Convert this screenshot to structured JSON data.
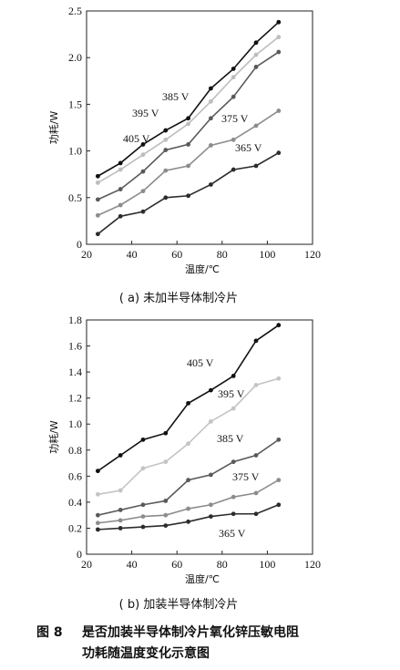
{
  "chart_data": [
    {
      "type": "line",
      "subtitle": "( a) 未加半导体制冷片",
      "xlabel": "温度/℃",
      "ylabel": "功耗/W",
      "xlim": [
        20,
        120
      ],
      "ylim": [
        0,
        2.5
      ],
      "xticks": [
        20,
        40,
        60,
        80,
        100,
        120
      ],
      "yticks": [
        0,
        0.5,
        1.0,
        1.5,
        2.0,
        2.5
      ],
      "ytick_labels": [
        "0",
        "0.5",
        "1.0",
        "1.5",
        "2.0",
        "2.5"
      ],
      "x": [
        25,
        35,
        45,
        55,
        65,
        75,
        85,
        95,
        105
      ],
      "grid": false,
      "series": [
        {
          "name": "405 V",
          "color": "#111111",
          "values": [
            0.73,
            0.87,
            1.07,
            1.22,
            1.35,
            1.67,
            1.88,
            2.16,
            2.38
          ]
        },
        {
          "name": "395 V",
          "color": "#bdbdbd",
          "values": [
            0.66,
            0.8,
            0.96,
            1.12,
            1.29,
            1.53,
            1.79,
            2.03,
            2.22
          ]
        },
        {
          "name": "385 V",
          "color": "#5a5a5a",
          "values": [
            0.48,
            0.59,
            0.78,
            1.01,
            1.07,
            1.35,
            1.58,
            1.9,
            2.06
          ]
        },
        {
          "name": "375 V",
          "color": "#8c8c8c",
          "values": [
            0.31,
            0.42,
            0.57,
            0.79,
            0.84,
            1.06,
            1.12,
            1.27,
            1.43
          ]
        },
        {
          "name": "365 V",
          "color": "#2c2c2c",
          "values": [
            0.11,
            0.3,
            0.35,
            0.5,
            0.52,
            0.64,
            0.8,
            0.84,
            0.98
          ]
        }
      ]
    },
    {
      "type": "line",
      "subtitle": "( b) 加装半导体制冷片",
      "xlabel": "温度/℃",
      "ylabel": "功耗/W",
      "xlim": [
        20,
        120
      ],
      "ylim": [
        0.0,
        1.8
      ],
      "xticks": [
        20,
        40,
        60,
        80,
        100,
        120
      ],
      "yticks": [
        0.0,
        0.2,
        0.4,
        0.6,
        0.8,
        1.0,
        1.2,
        1.4,
        1.6,
        1.8
      ],
      "ytick_labels": [
        "0",
        "0.2",
        "0.4",
        "0.6",
        "0.8",
        "1.0",
        "1.2",
        "1.4",
        "1.6",
        "1.8"
      ],
      "x": [
        25,
        35,
        45,
        55,
        65,
        75,
        85,
        95,
        105
      ],
      "grid": false,
      "series": [
        {
          "name": "405 V",
          "color": "#111111",
          "values": [
            0.64,
            0.76,
            0.88,
            0.93,
            1.16,
            1.26,
            1.37,
            1.64,
            1.76
          ]
        },
        {
          "name": "395 V",
          "color": "#c4c4c4",
          "values": [
            0.46,
            0.49,
            0.66,
            0.71,
            0.85,
            1.02,
            1.12,
            1.3,
            1.35
          ]
        },
        {
          "name": "385 V",
          "color": "#5a5a5a",
          "values": [
            0.3,
            0.34,
            0.38,
            0.41,
            0.57,
            0.61,
            0.71,
            0.76,
            0.88
          ]
        },
        {
          "name": "375 V",
          "color": "#8c8c8c",
          "values": [
            0.24,
            0.26,
            0.29,
            0.3,
            0.35,
            0.38,
            0.44,
            0.47,
            0.57
          ]
        },
        {
          "name": "365 V",
          "color": "#2c2c2c",
          "values": [
            0.19,
            0.2,
            0.21,
            0.22,
            0.25,
            0.29,
            0.31,
            0.31,
            0.38
          ]
        }
      ]
    }
  ],
  "caption": {
    "figure_label": "图 8",
    "line1": "是否加装半导体制冷片氧化锌压敏电阻",
    "line2": "功耗随温度变化示意图"
  }
}
